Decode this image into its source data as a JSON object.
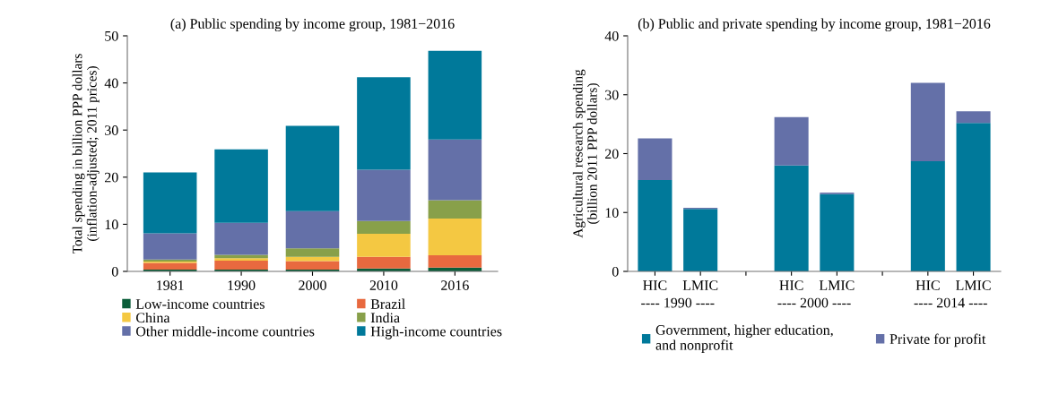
{
  "chart_data": [
    {
      "type": "bar",
      "title": "(a) Public spending by income group, 1981−2016",
      "ylabel": "Total spending in billion PPP dollars\n(inflation-adjusted; 2011 prices)",
      "categories": [
        "1981",
        "1990",
        "2000",
        "2010",
        "2016"
      ],
      "stacked": true,
      "ylim": [
        0,
        50
      ],
      "yticks": [
        0,
        10,
        20,
        30,
        40,
        50
      ],
      "grid": false,
      "legend": "bottom",
      "series": [
        {
          "name": "Low-income countries",
          "color": "#0b5e3a",
          "values": [
            0.4,
            0.4,
            0.4,
            0.6,
            0.8
          ]
        },
        {
          "name": "Brazil",
          "color": "#e8693f",
          "values": [
            1.4,
            1.9,
            1.8,
            2.5,
            2.6
          ]
        },
        {
          "name": "China",
          "color": "#f4c842",
          "values": [
            0.3,
            0.5,
            0.9,
            4.9,
            7.8
          ]
        },
        {
          "name": "India",
          "color": "#88a04a",
          "values": [
            0.4,
            0.7,
            1.8,
            2.7,
            3.9
          ]
        },
        {
          "name": "Other middle-income countries",
          "color": "#6470a8",
          "values": [
            5.6,
            6.8,
            7.9,
            10.9,
            12.9
          ]
        },
        {
          "name": "High-income countries",
          "color": "#00799a",
          "values": [
            12.9,
            15.6,
            18.1,
            19.6,
            18.8
          ]
        }
      ]
    },
    {
      "type": "bar",
      "title": "(b) Public and private spending by income group, 1981−2016",
      "ylabel": "Agricultural research spending\n(billion 2011 PPP dollars)",
      "categories": [
        "HIC",
        "LMIC",
        null,
        "HIC",
        "LMIC",
        null,
        "HIC",
        "LMIC"
      ],
      "stacked": true,
      "ylim": [
        0,
        40
      ],
      "yticks": [
        0,
        10,
        20,
        30,
        40
      ],
      "grid": false,
      "legend": "bottom",
      "annotations": [
        "---- 1990 ----",
        "---- 2000 ----",
        "---- 2014 ----"
      ],
      "series": [
        {
          "name": "Government, higher education,\nand nonprofit",
          "color": "#00799a",
          "values": [
            15.5,
            10.6,
            null,
            18.0,
            13.1,
            null,
            18.7,
            25.2
          ]
        },
        {
          "name": "Private for profit",
          "color": "#6470a8",
          "values": [
            7.1,
            0.2,
            null,
            8.2,
            0.3,
            null,
            13.3,
            2.0
          ]
        }
      ]
    }
  ]
}
